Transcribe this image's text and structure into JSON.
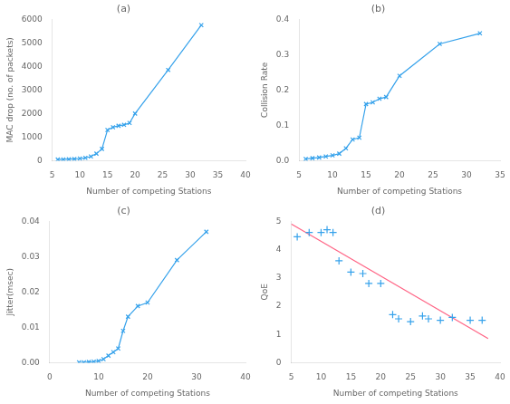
{
  "chart_data": [
    {
      "type": "line",
      "title": "(a)",
      "x_label": "Number of competing Stations",
      "y_label": "MAC drop (no. of packets)",
      "x": [
        6,
        7,
        8,
        9,
        10,
        11,
        12,
        13,
        14,
        15,
        16,
        17,
        18,
        19,
        20,
        26,
        32
      ],
      "series": [
        {
          "marker": "x",
          "values": [
            50,
            55,
            65,
            75,
            90,
            120,
            180,
            300,
            500,
            1300,
            1420,
            1480,
            1520,
            1600,
            2000,
            3850,
            5750
          ]
        }
      ],
      "xlim": [
        5,
        40
      ],
      "xticks": [
        5,
        10,
        15,
        20,
        25,
        30,
        35,
        40
      ],
      "ylim": [
        0,
        6000
      ],
      "yticks": [
        0,
        1000,
        2000,
        3000,
        4000,
        5000,
        6000
      ],
      "grid": false
    },
    {
      "type": "line",
      "title": "(b)",
      "x_label": "Number of competing Stations",
      "y_label": "Collision Rate",
      "x": [
        6,
        7,
        8,
        9,
        10,
        11,
        12,
        13,
        14,
        15,
        16,
        17,
        18,
        20,
        26,
        32
      ],
      "series": [
        {
          "marker": "x",
          "values": [
            0.005,
            0.007,
            0.009,
            0.012,
            0.015,
            0.02,
            0.035,
            0.06,
            0.065,
            0.16,
            0.165,
            0.175,
            0.18,
            0.24,
            0.33,
            0.36
          ]
        }
      ],
      "xlim": [
        5,
        35
      ],
      "xticks": [
        5,
        10,
        15,
        20,
        25,
        30,
        35
      ],
      "ylim": [
        0,
        0.4
      ],
      "yticks": [
        {
          "value": 0,
          "label": "0.0"
        },
        0.1,
        0.2,
        0.3,
        0.4
      ],
      "grid": false
    },
    {
      "type": "line",
      "title": "(c)",
      "x_label": "Number of competing Stations",
      "y_label": "Jitter(msec)",
      "x": [
        6,
        7,
        8,
        9,
        10,
        11,
        12,
        13,
        14,
        15,
        16,
        18,
        20,
        26,
        32
      ],
      "series": [
        {
          "marker": "x",
          "values": [
            0.0001,
            0.0001,
            0.0002,
            0.0003,
            0.0005,
            0.001,
            0.002,
            0.003,
            0.004,
            0.009,
            0.013,
            0.016,
            0.017,
            0.029,
            0.037
          ]
        }
      ],
      "xlim": [
        0,
        40
      ],
      "xticks": [
        0,
        10,
        20,
        30,
        40
      ],
      "ylim": [
        0,
        0.04
      ],
      "yticks": [
        {
          "value": 0,
          "label": "0.00"
        },
        0.01,
        0.02,
        0.03,
        0.04
      ],
      "grid": false
    },
    {
      "type": "scatter",
      "title": "(d)",
      "x_label": "Number of competing Stations",
      "y_label": "QoE",
      "series": [
        {
          "type": "scatter",
          "marker": "+",
          "x": [
            6,
            8,
            10,
            11,
            12,
            13,
            15,
            17,
            18,
            20,
            22,
            23,
            25,
            27,
            28,
            30,
            32,
            35,
            37
          ],
          "values": [
            4.45,
            4.6,
            4.6,
            4.7,
            4.6,
            3.6,
            3.2,
            3.15,
            2.8,
            2.8,
            1.7,
            1.55,
            1.45,
            1.65,
            1.55,
            1.5,
            1.6,
            1.5,
            1.5
          ]
        },
        {
          "type": "line",
          "x": [
            5,
            38
          ],
          "values": [
            4.9,
            0.85
          ]
        }
      ],
      "xlim": [
        5,
        40
      ],
      "xticks": [
        5,
        10,
        15,
        20,
        25,
        30,
        35,
        40
      ],
      "ylim": [
        0,
        5
      ],
      "yticks": [
        0,
        1,
        2,
        3,
        4,
        5
      ],
      "grid": false
    }
  ]
}
